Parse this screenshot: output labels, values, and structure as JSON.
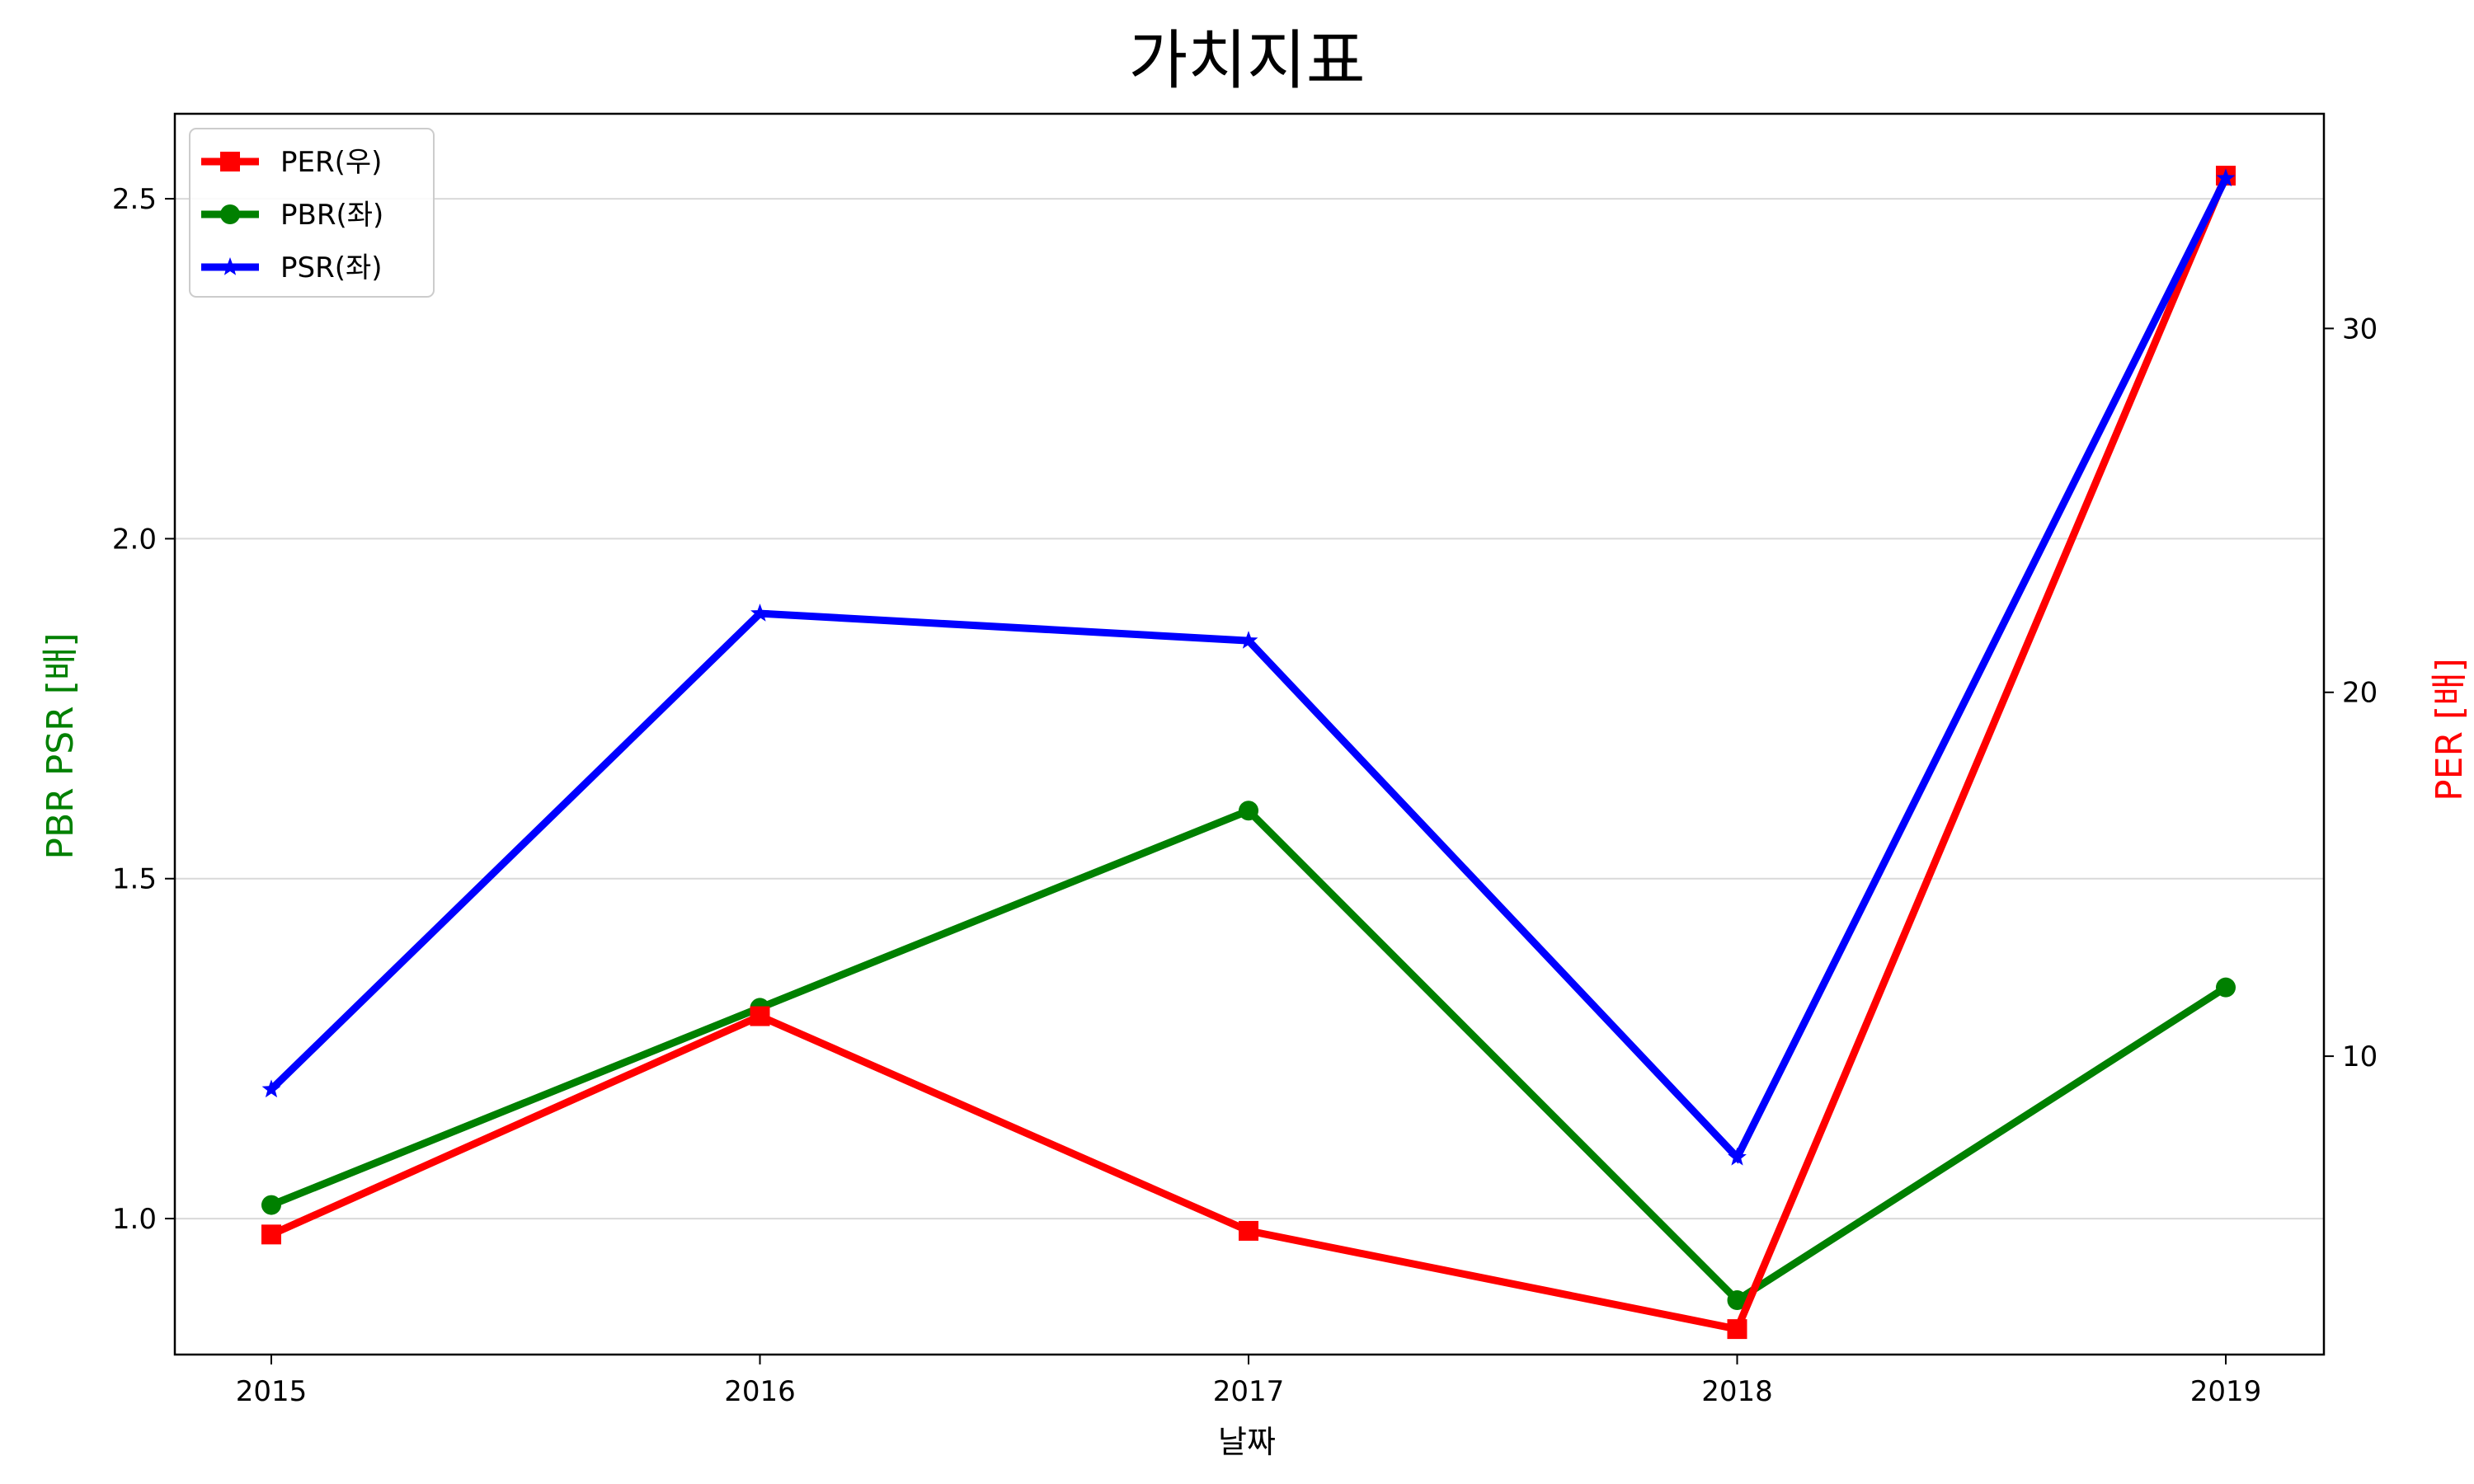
{
  "chart_data": {
    "type": "line",
    "title": "가치지표",
    "xlabel": "날짜",
    "ylabel_left": "PBR PSR [배]",
    "ylabel_right": "PER [배]",
    "categories": [
      "2015",
      "2016",
      "2017",
      "2018",
      "2019"
    ],
    "left_axis": {
      "ylim": [
        0.8,
        2.625
      ],
      "ticks": [
        1.0,
        1.5,
        2.0,
        2.5
      ],
      "tick_labels": [
        "1.0",
        "1.5",
        "2.0",
        "2.5"
      ],
      "label_color": "#008000"
    },
    "right_axis": {
      "ylim": [
        1.8,
        35.9
      ],
      "ticks": [
        10,
        20,
        30
      ],
      "tick_labels": [
        "10",
        "20",
        "30"
      ],
      "label_color": "#ff0000"
    },
    "grid": "horizontal (left axis)",
    "legend_position": "upper-left",
    "series": [
      {
        "name": "PER(우)",
        "axis": "right",
        "color": "#ff0000",
        "marker": "square",
        "values": [
          5.1,
          11.1,
          5.2,
          2.5,
          34.2
        ]
      },
      {
        "name": "PBR(좌)",
        "axis": "left",
        "color": "#008000",
        "marker": "circle",
        "values": [
          1.02,
          1.31,
          1.6,
          0.88,
          1.34
        ]
      },
      {
        "name": "PSR(좌)",
        "axis": "left",
        "color": "#0000ff",
        "marker": "star",
        "values": [
          1.19,
          1.89,
          1.85,
          1.09,
          2.53
        ]
      }
    ]
  }
}
